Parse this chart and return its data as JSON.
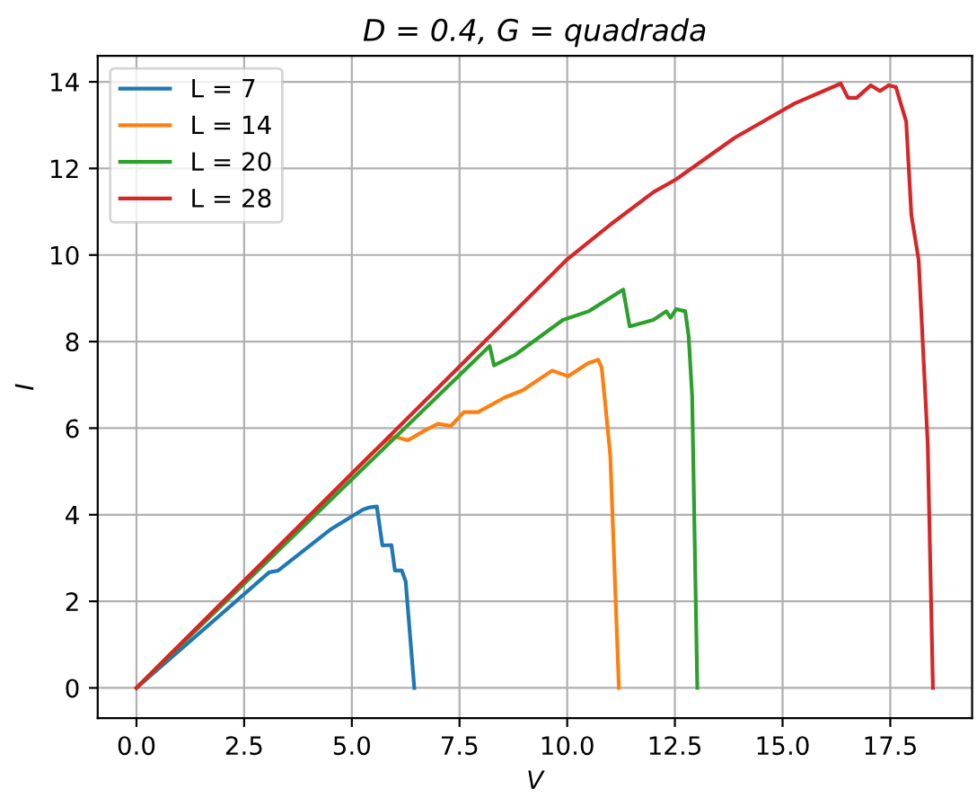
{
  "chart_data": {
    "type": "line",
    "title": "D = 0.4, G = quadrada",
    "xlabel": "V",
    "ylabel": "I",
    "xlim": [
      -0.9,
      19.4
    ],
    "ylim": [
      -0.7,
      14.6
    ],
    "xticks": [
      {
        "value": 0,
        "label": "0.0"
      },
      {
        "value": 2.5,
        "label": "2.5"
      },
      {
        "value": 5,
        "label": "5.0"
      },
      {
        "value": 7.5,
        "label": "7.5"
      },
      {
        "value": 10,
        "label": "10.0"
      },
      {
        "value": 12.5,
        "label": "12.5"
      },
      {
        "value": 15,
        "label": "15.0"
      },
      {
        "value": 17.5,
        "label": "17.5"
      }
    ],
    "yticks": [
      0,
      2,
      4,
      6,
      8,
      10,
      12,
      14
    ],
    "grid": true,
    "legend": "top left",
    "marker": "none",
    "line_style": "solid",
    "series": [
      {
        "name": "L = 7",
        "color": "#1f77b4",
        "x": [
          0,
          3.08,
          3.29,
          4.4,
          4.52,
          5.26,
          5.42,
          5.58,
          5.71,
          5.92,
          6.0,
          6.16,
          6.25,
          6.45
        ],
        "values": [
          0,
          2.67,
          2.71,
          3.58,
          3.67,
          4.12,
          4.17,
          4.19,
          3.29,
          3.3,
          2.71,
          2.71,
          2.46,
          0
        ]
      },
      {
        "name": "L = 14",
        "color": "#ff7f0e",
        "x": [
          0,
          5.5,
          5.8,
          6.0,
          6.3,
          6.7,
          7.0,
          7.3,
          7.6,
          7.93,
          8.55,
          8.96,
          9.65,
          10.02,
          10.48,
          10.72,
          10.8,
          11.0,
          11.2
        ],
        "values": [
          0,
          5.45,
          5.72,
          5.8,
          5.72,
          5.95,
          6.1,
          6.05,
          6.37,
          6.37,
          6.71,
          6.87,
          7.33,
          7.2,
          7.5,
          7.58,
          7.4,
          5.37,
          0
        ]
      },
      {
        "name": "L = 20",
        "color": "#2ca02c",
        "x": [
          0,
          8.2,
          8.3,
          8.8,
          9.9,
          10.5,
          11.3,
          11.45,
          12.0,
          12.3,
          12.4,
          12.53,
          12.74,
          12.82,
          12.9,
          13.02
        ],
        "values": [
          0,
          7.9,
          7.45,
          7.7,
          8.5,
          8.7,
          9.2,
          8.35,
          8.5,
          8.7,
          8.55,
          8.75,
          8.7,
          8.12,
          6.75,
          0
        ]
      },
      {
        "name": "L = 28",
        "color": "#d62728",
        "x": [
          0,
          10,
          11,
          12,
          12.53,
          13.89,
          15.28,
          16.35,
          16.52,
          16.72,
          17.05,
          17.26,
          17.46,
          17.63,
          17.87,
          17.99,
          18.16,
          18.37,
          18.49
        ],
        "values": [
          0,
          9.9,
          10.7,
          11.45,
          11.75,
          12.71,
          13.5,
          13.96,
          13.63,
          13.63,
          13.92,
          13.79,
          13.92,
          13.88,
          13.08,
          10.92,
          9.88,
          5.63,
          0
        ]
      }
    ]
  }
}
